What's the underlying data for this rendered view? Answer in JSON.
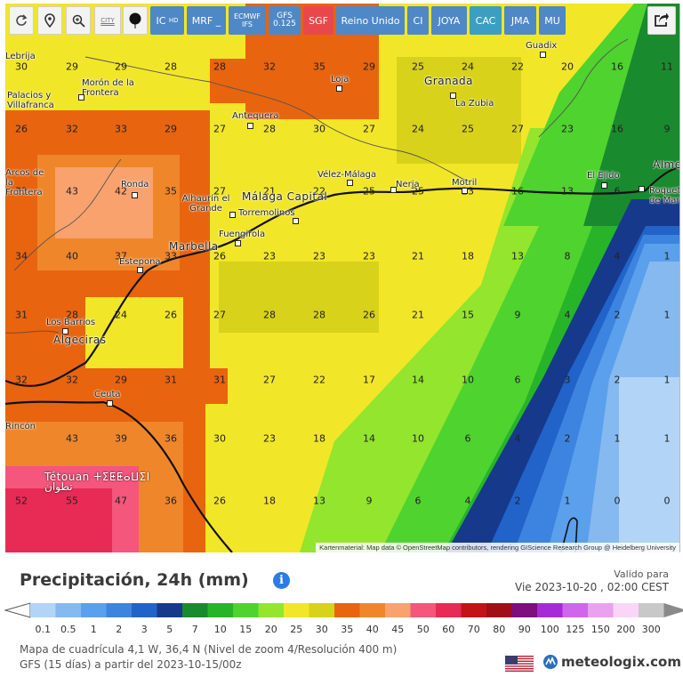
{
  "toolbar": {
    "buttons": [
      {
        "name": "refresh-button",
        "type": "icon",
        "icon": "refresh-icon"
      },
      {
        "name": "location-button",
        "type": "icon",
        "icon": "location-pin-icon"
      },
      {
        "name": "zoom-button",
        "type": "icon",
        "icon": "magnifier-zoom-icon"
      },
      {
        "name": "city-toggle-button",
        "type": "city",
        "label": "CITY"
      },
      {
        "name": "layer-toggle-button",
        "type": "icon",
        "icon": "balloon-icon"
      },
      {
        "name": "model-ic-button",
        "label": "IC",
        "sub": "HD",
        "style": "blue"
      },
      {
        "name": "model-mrf-button",
        "label": "MRF _",
        "style": "blue"
      },
      {
        "name": "model-ecmwf-button",
        "label": "ECMWF",
        "sub": "IFS",
        "style": "blue2"
      },
      {
        "name": "model-gfs-button",
        "label": "GFS",
        "sub": "0.125",
        "style": "blue2"
      },
      {
        "name": "model-sgf-button",
        "label": "SGF",
        "style": "red"
      },
      {
        "name": "model-reino-unido-button",
        "label": "Reino Unido",
        "style": "blue"
      },
      {
        "name": "model-ci-button",
        "label": "CI",
        "style": "blue"
      },
      {
        "name": "model-joya-button",
        "label": "JOYA",
        "style": "blue"
      },
      {
        "name": "model-cac-button",
        "label": "CAC",
        "style": "teal"
      },
      {
        "name": "model-jma-button",
        "label": "JMA",
        "style": "blue"
      },
      {
        "name": "model-mu-button",
        "label": "MU",
        "style": "blue"
      }
    ],
    "share_icon": "share-icon"
  },
  "map": {
    "values": [
      [
        "30",
        "29",
        "29",
        "28",
        "28",
        "32",
        "35",
        "29",
        "25",
        "24",
        "22",
        "20",
        "16",
        "11"
      ],
      [
        "26",
        "32",
        "33",
        "29",
        "27",
        "28",
        "30",
        "27",
        "24",
        "25",
        "27",
        "23",
        "16",
        "9"
      ],
      [
        "33",
        "43",
        "42",
        "35",
        "27",
        "21",
        "22",
        "25",
        "25",
        "23",
        "16",
        "13",
        "6",
        ""
      ],
      [
        "34",
        "40",
        "37",
        "33",
        "26",
        "23",
        "23",
        "23",
        "21",
        "18",
        "13",
        "8",
        "4",
        "1"
      ],
      [
        "31",
        "28",
        "24",
        "26",
        "27",
        "28",
        "28",
        "26",
        "21",
        "15",
        "9",
        "4",
        "2",
        "1"
      ],
      [
        "32",
        "32",
        "29",
        "31",
        "31",
        "27",
        "22",
        "17",
        "14",
        "10",
        "6",
        "3",
        "2",
        "1"
      ],
      [
        "",
        "43",
        "39",
        "36",
        "30",
        "23",
        "18",
        "14",
        "10",
        "6",
        "4",
        "2",
        "1",
        "1"
      ],
      [
        "52",
        "55",
        "47",
        "36",
        "26",
        "18",
        "13",
        "9",
        "6",
        "4",
        "2",
        "1",
        "0",
        "0"
      ]
    ],
    "places": [
      {
        "name": "Guadix"
      },
      {
        "name": "Loja"
      },
      {
        "name": "Granada"
      },
      {
        "name": "La Zubia"
      },
      {
        "name": "Morón de la Frontera"
      },
      {
        "name": "Palacios y Villafranca"
      },
      {
        "name": "Antequera"
      },
      {
        "name": "Vélez-Málaga"
      },
      {
        "name": "Nerja"
      },
      {
        "name": "Motril"
      },
      {
        "name": "El Ejido"
      },
      {
        "name": "Almería"
      },
      {
        "name": "Roquetas de Mar"
      },
      {
        "name": "Ronda"
      },
      {
        "name": "Alhaurín el Grande"
      },
      {
        "name": "Málaga Capital"
      },
      {
        "name": "Torremolinos"
      },
      {
        "name": "Fuengirola"
      },
      {
        "name": "Marbella"
      },
      {
        "name": "Estepona"
      },
      {
        "name": "Los Barrios"
      },
      {
        "name": "Algeciras"
      },
      {
        "name": "Ceuta"
      },
      {
        "name": "Tétouan ⵜⵉⵟⵟⴰⵡⵉⵏ تطوان"
      },
      {
        "name": "Arcos de la Frontera"
      },
      {
        "name": "Lebrija"
      },
      {
        "name": "Rincón"
      }
    ],
    "attribution": "Kartenmaterial: Map data © OpenStreetMap contributors, rendering GIScience Research Group @ Heidelberg University"
  },
  "panel": {
    "title": "Precipitación, 24h (mm)",
    "valid_label": "Valido para",
    "valid_date": "Vie 2023-10-20 , 02:00 CEST",
    "scale_ticks": [
      "0.1",
      "0.5",
      "1",
      "2",
      "3",
      "5",
      "7",
      "10",
      "15",
      "20",
      "25",
      "30",
      "35",
      "40",
      "45",
      "50",
      "60",
      "70",
      "80",
      "90",
      "100",
      "125",
      "150",
      "200",
      "300"
    ],
    "scale_colors": [
      "#b2d4f7",
      "#86b9f0",
      "#5aa0ec",
      "#3d84e0",
      "#2163c9",
      "#16398c",
      "#1a8a2e",
      "#28b428",
      "#4fd32e",
      "#93e52d",
      "#f2e628",
      "#d8d21a",
      "#e8640f",
      "#f0862a",
      "#f9a26e",
      "#f5567c",
      "#e72b55",
      "#c21417",
      "#a30d16",
      "#7d0f7e",
      "#a62bd6",
      "#cf66eb",
      "#e8a2f0",
      "#f9d6f7",
      "#c8c8c8"
    ],
    "info_icon": "info-icon",
    "footer_line1": "Mapa de cuadrícula 4,1 W, 36,4 N (Nivel de zoom 4/Resolución 400 m)",
    "footer_line2": "GFS (15 días) a partir del 2023-10-15/00z",
    "flag_icon": "us-flag-icon",
    "brand_icon": "meteologix-logo-icon",
    "brand": "meteologix.com"
  }
}
